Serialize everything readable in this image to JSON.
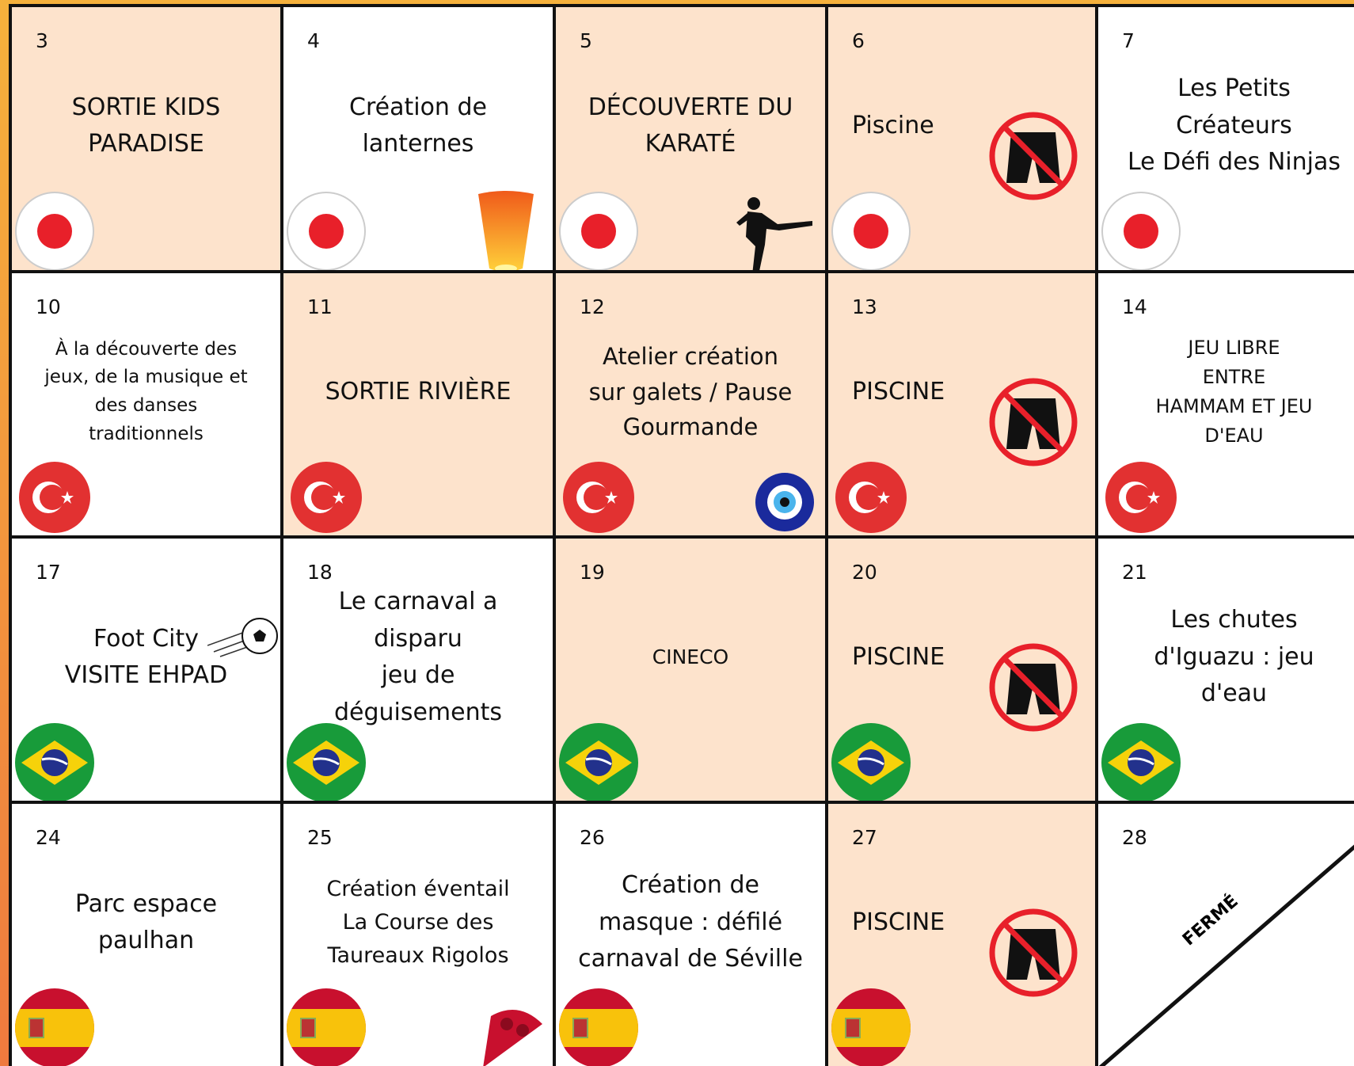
{
  "calendar": {
    "rows": [
      [
        {
          "day": 3,
          "lines": [
            "SORTIE KIDS",
            "PARADISE"
          ]
        },
        {
          "day": 4,
          "lines": [
            "Création de",
            "lanternes"
          ]
        },
        {
          "day": 5,
          "lines": [
            "DÉCOUVERTE DU",
            "KARATÉ"
          ]
        },
        {
          "day": 6,
          "lines": [
            "Piscine"
          ]
        },
        {
          "day": 7,
          "lines": [
            "Les Petits",
            "Créateurs",
            "Le Défi des Ninjas"
          ]
        }
      ],
      [
        {
          "day": 10,
          "lines": [
            "À la découverte des",
            "jeux, de la musique et",
            "des danses",
            "traditionnels"
          ]
        },
        {
          "day": 11,
          "lines": [
            "SORTIE RIVIÈRE"
          ]
        },
        {
          "day": 12,
          "lines": [
            "Atelier création",
            "sur galets / Pause",
            "Gourmande"
          ]
        },
        {
          "day": 13,
          "lines": [
            "PISCINE"
          ]
        },
        {
          "day": 14,
          "lines": [
            "JEU LIBRE",
            "ENTRE",
            "HAMMAM ET JEU",
            "D'EAU"
          ]
        }
      ],
      [
        {
          "day": 17,
          "lines": [
            "Foot City",
            "VISITE EHPAD"
          ]
        },
        {
          "day": 18,
          "lines": [
            "Le carnaval a",
            "disparu",
            "jeu de",
            "déguisements"
          ]
        },
        {
          "day": 19,
          "lines": [
            "CINECO"
          ]
        },
        {
          "day": 20,
          "lines": [
            "PISCINE"
          ]
        },
        {
          "day": 21,
          "lines": [
            "Les chutes",
            "d'Iguazu : jeu",
            "d'eau"
          ]
        }
      ],
      [
        {
          "day": 24,
          "lines": [
            "Parc espace",
            "paulhan"
          ]
        },
        {
          "day": 25,
          "lines": [
            "Création éventail",
            "La Course des",
            "Taureaux Rigolos"
          ]
        },
        {
          "day": 26,
          "lines": [
            "Création de",
            "masque : défilé",
            "carnaval de Séville"
          ]
        },
        {
          "day": 27,
          "lines": [
            "PISCINE"
          ]
        },
        {
          "day": 28,
          "lines": [
            "FERMÉ"
          ]
        }
      ]
    ]
  }
}
